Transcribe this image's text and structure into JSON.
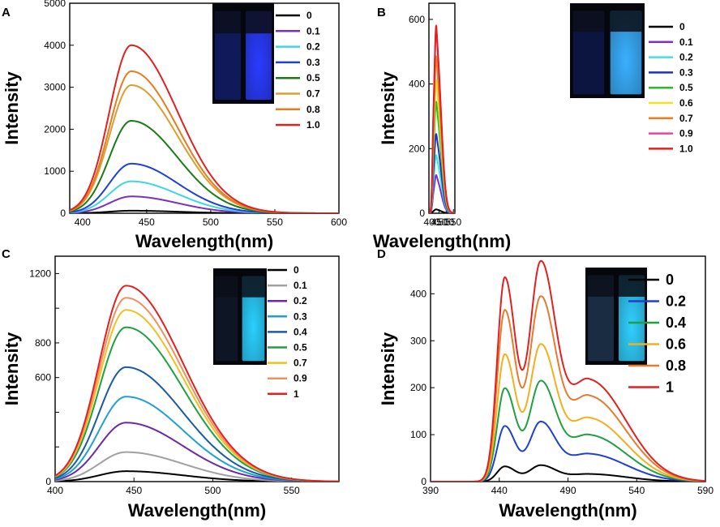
{
  "chart_data": [
    {
      "panel": "A",
      "type": "line",
      "xlabel": "Wavelength(nm)",
      "ylabel": "Intensity",
      "xlim": [
        390,
        600
      ],
      "ylim": [
        0,
        5000
      ],
      "xticks": [
        400,
        450,
        500,
        550,
        600
      ],
      "yticks": [
        0,
        1000,
        2000,
        3000,
        4000,
        5000
      ],
      "peak_wavelength": 438,
      "shape": "single",
      "series": [
        {
          "name": "0",
          "peak": 60,
          "color": "#000000"
        },
        {
          "name": "0.1",
          "peak": 400,
          "color": "#7b2fbf"
        },
        {
          "name": "0.2",
          "peak": 760,
          "color": "#3fd4e8"
        },
        {
          "name": "0.3",
          "peak": 1180,
          "color": "#1f3fd6"
        },
        {
          "name": "0.5",
          "peak": 2200,
          "color": "#1a7a1a"
        },
        {
          "name": "0.7",
          "peak": 3050,
          "color": "#d9a030"
        },
        {
          "name": "0.8",
          "peak": 3380,
          "color": "#e87a20"
        },
        {
          "name": "1.0",
          "peak": 4000,
          "color": "#e32020"
        }
      ],
      "inset": {
        "left_glow": "#1a2a9c",
        "right_glow": "#2a3cff"
      }
    },
    {
      "panel": "B",
      "type": "line",
      "xlabel": "Wavelength(nm)",
      "ylabel": "Intensity",
      "xlim": [
        380,
        560
      ],
      "ylim": [
        0,
        650
      ],
      "xticks": [
        400,
        450,
        500,
        550
      ],
      "yticks": [
        0,
        200,
        400,
        600
      ],
      "peak_wavelength": 433,
      "shape": "shoulder",
      "series": [
        {
          "name": "0",
          "peak": 12,
          "color": "#000000"
        },
        {
          "name": "0.1",
          "peak": 118,
          "color": "#7b2fd0"
        },
        {
          "name": "0.2",
          "peak": 180,
          "color": "#3fe0e8"
        },
        {
          "name": "0.3",
          "peak": 245,
          "color": "#1f2fc8"
        },
        {
          "name": "0.5",
          "peak": 345,
          "color": "#20c020"
        },
        {
          "name": "0.6",
          "peak": 412,
          "color": "#f0e020"
        },
        {
          "name": "0.7",
          "peak": 485,
          "color": "#f07a20"
        },
        {
          "name": "0.9",
          "peak": 568,
          "color": "#f040a0"
        },
        {
          "name": "1.0",
          "peak": 580,
          "color": "#e32020"
        }
      ],
      "inset": {
        "left_glow": "#10206a",
        "right_glow": "#3ab0ff"
      }
    },
    {
      "panel": "C",
      "type": "line",
      "xlabel": "Wavelength(nm)",
      "ylabel": "Intensity",
      "xlim": [
        400,
        580
      ],
      "ylim": [
        0,
        1300
      ],
      "xticks": [
        400,
        450,
        500,
        550
      ],
      "yticks": [
        0,
        200,
        400,
        600,
        800,
        1000,
        1200
      ],
      "ytick_labels": [
        "0",
        "",
        "",
        "600",
        "800",
        "",
        "1200"
      ],
      "peak_wavelength": 445,
      "shape": "single",
      "series": [
        {
          "name": "0",
          "peak": 60,
          "color": "#000000"
        },
        {
          "name": "0.1",
          "peak": 170,
          "color": "#a0a0a0"
        },
        {
          "name": "0.2",
          "peak": 340,
          "color": "#6a2aa8"
        },
        {
          "name": "0.3",
          "peak": 490,
          "color": "#20a0d0"
        },
        {
          "name": "0.4",
          "peak": 660,
          "color": "#1a5aa0"
        },
        {
          "name": "0.5",
          "peak": 890,
          "color": "#20a040"
        },
        {
          "name": "0.7",
          "peak": 990,
          "color": "#f0c020"
        },
        {
          "name": "0.9",
          "peak": 1060,
          "color": "#f09060"
        },
        {
          "name": "1",
          "peak": 1130,
          "color": "#e32020"
        }
      ],
      "inset": {
        "left_glow": "#15203a",
        "right_glow": "#2ad0ff"
      }
    },
    {
      "panel": "D",
      "type": "line",
      "xlabel": "Wavelength(nm)",
      "ylabel": "Intensity",
      "xlim": [
        390,
        590
      ],
      "ylim": [
        0,
        480
      ],
      "xticks": [
        390,
        440,
        490,
        540,
        590
      ],
      "yticks": [
        0,
        100,
        200,
        300,
        400
      ],
      "peak_wavelength": 470,
      "shape": "double",
      "series": [
        {
          "name": "0",
          "peak": 35,
          "color": "#000000"
        },
        {
          "name": "0.2",
          "peak": 128,
          "color": "#1f3fd0"
        },
        {
          "name": "0.4",
          "peak": 215,
          "color": "#20a040"
        },
        {
          "name": "0.6",
          "peak": 293,
          "color": "#f0b020"
        },
        {
          "name": "0.8",
          "peak": 395,
          "color": "#e87a30"
        },
        {
          "name": "1",
          "peak": 470,
          "color": "#e32020"
        }
      ],
      "inset": {
        "left_glow": "#2a4a70",
        "right_glow": "#30d0ff"
      }
    }
  ]
}
